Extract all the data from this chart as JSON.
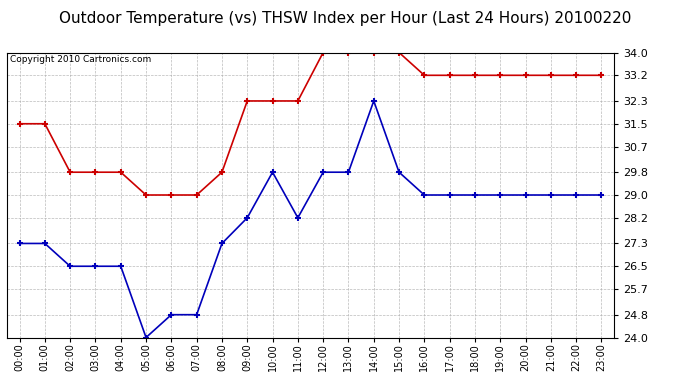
{
  "title": "Outdoor Temperature (vs) THSW Index per Hour (Last 24 Hours) 20100220",
  "copyright": "Copyright 2010 Cartronics.com",
  "hours": [
    "00:00",
    "01:00",
    "02:00",
    "03:00",
    "04:00",
    "05:00",
    "06:00",
    "07:00",
    "08:00",
    "09:00",
    "10:00",
    "11:00",
    "12:00",
    "13:00",
    "14:00",
    "15:00",
    "16:00",
    "17:00",
    "18:00",
    "19:00",
    "20:00",
    "21:00",
    "22:00",
    "23:00"
  ],
  "temp_blue": [
    27.3,
    27.3,
    26.5,
    26.5,
    26.5,
    24.0,
    24.8,
    24.8,
    27.3,
    28.2,
    29.8,
    28.2,
    29.8,
    29.8,
    32.3,
    29.8,
    29.0,
    29.0,
    29.0,
    29.0,
    29.0,
    29.0,
    29.0,
    29.0
  ],
  "thsw_red": [
    31.5,
    31.5,
    29.8,
    29.8,
    29.8,
    29.0,
    29.0,
    29.0,
    29.8,
    32.3,
    32.3,
    32.3,
    34.0,
    34.0,
    34.0,
    34.0,
    33.2,
    33.2,
    33.2,
    33.2,
    33.2,
    33.2,
    33.2,
    33.2
  ],
  "ymin": 24.0,
  "ymax": 34.0,
  "yticks": [
    24.0,
    24.8,
    25.7,
    26.5,
    27.3,
    28.2,
    29.0,
    29.8,
    30.7,
    31.5,
    32.3,
    33.2,
    34.0
  ],
  "blue_color": "#0000bb",
  "red_color": "#cc0000",
  "background_color": "#ffffff",
  "grid_color": "#aaaaaa",
  "title_fontsize": 11,
  "copyright_fontsize": 6.5,
  "tick_fontsize": 8,
  "xtick_fontsize": 7
}
